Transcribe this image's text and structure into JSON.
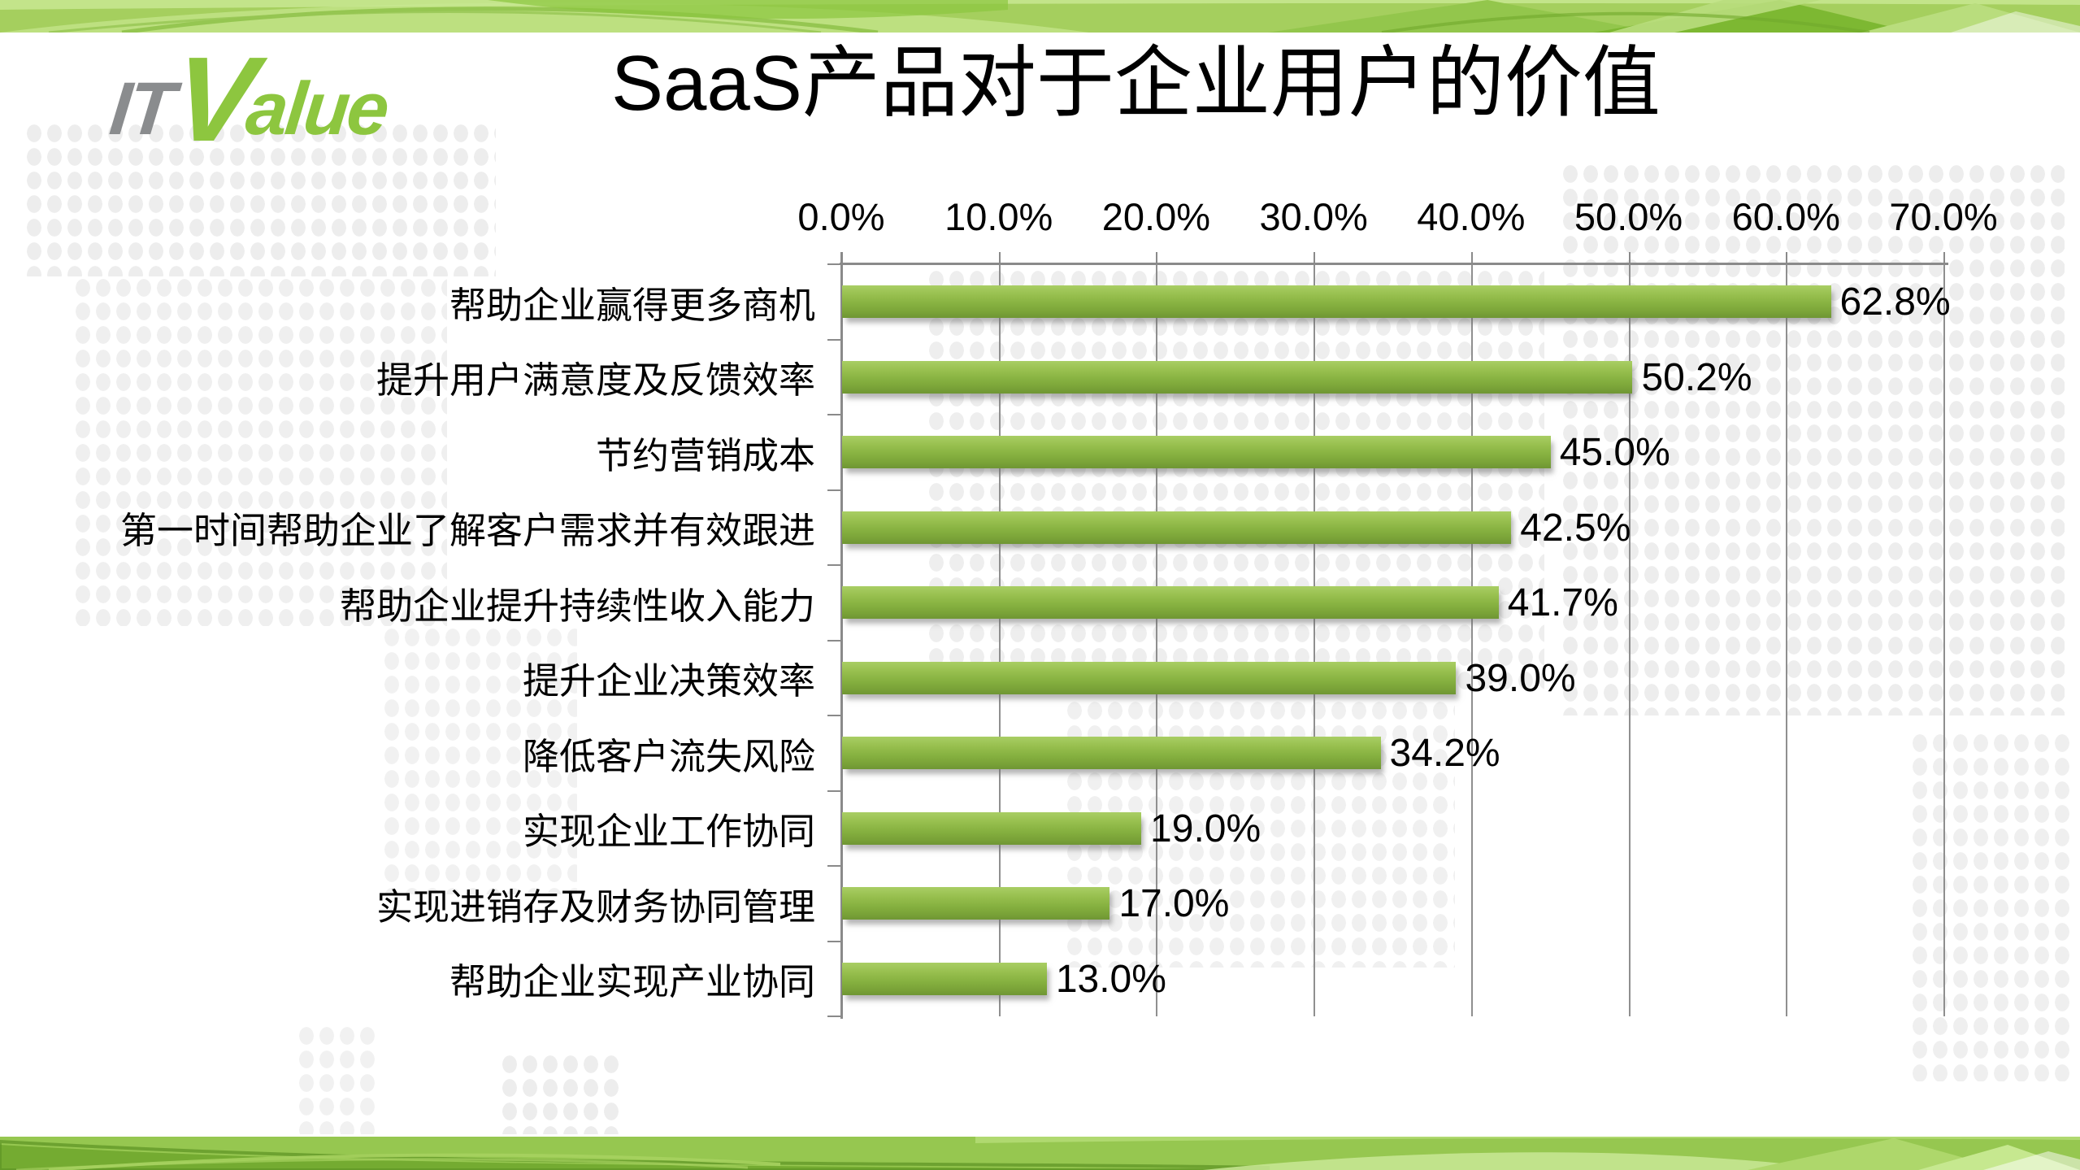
{
  "slide": {
    "logo": {
      "it": "IT",
      "value": "Value"
    },
    "title": "SaaS产品对于企业用户的价值"
  },
  "chart_data": {
    "type": "bar",
    "orientation": "horizontal",
    "title": "SaaS产品对于企业用户的价值",
    "categories": [
      "帮助企业赢得更多商机",
      "提升用户满意度及反馈效率",
      "节约营销成本",
      "第一时间帮助企业了解客户需求并有效跟进",
      "帮助企业提升持续性收入能力",
      "提升企业决策效率",
      "降低客户流失风险",
      "实现企业工作协同",
      "实现进销存及财务协同管理",
      "帮助企业实现产业协同"
    ],
    "values": [
      62.8,
      50.2,
      45.0,
      42.5,
      41.7,
      39.0,
      34.2,
      19.0,
      17.0,
      13.0
    ],
    "value_labels": [
      "62.8%",
      "50.2%",
      "45.0%",
      "42.5%",
      "41.7%",
      "39.0%",
      "34.2%",
      "19.0%",
      "17.0%",
      "13.0%"
    ],
    "x_ticks": [
      "0.0%",
      "10.0%",
      "20.0%",
      "30.0%",
      "40.0%",
      "50.0%",
      "60.0%",
      "70.0%"
    ],
    "xlim": [
      0,
      70
    ],
    "grid": true,
    "legend": "none",
    "bar_color": "#8CB944",
    "bar_gradient_top": "#A9CE64",
    "bar_gradient_bottom": "#6F9634",
    "axis_color": "#8A8A8A",
    "gridline_color": "#8F8F8F",
    "label_color": "#000000"
  },
  "decor": {
    "dot_color": "#EDEDED",
    "band_light": "#BDE080",
    "band_mid": "#9BCB55",
    "band_dark": "#6FA82C",
    "logo_gray": "#8A8C8E",
    "logo_green": "#8DC63F"
  }
}
